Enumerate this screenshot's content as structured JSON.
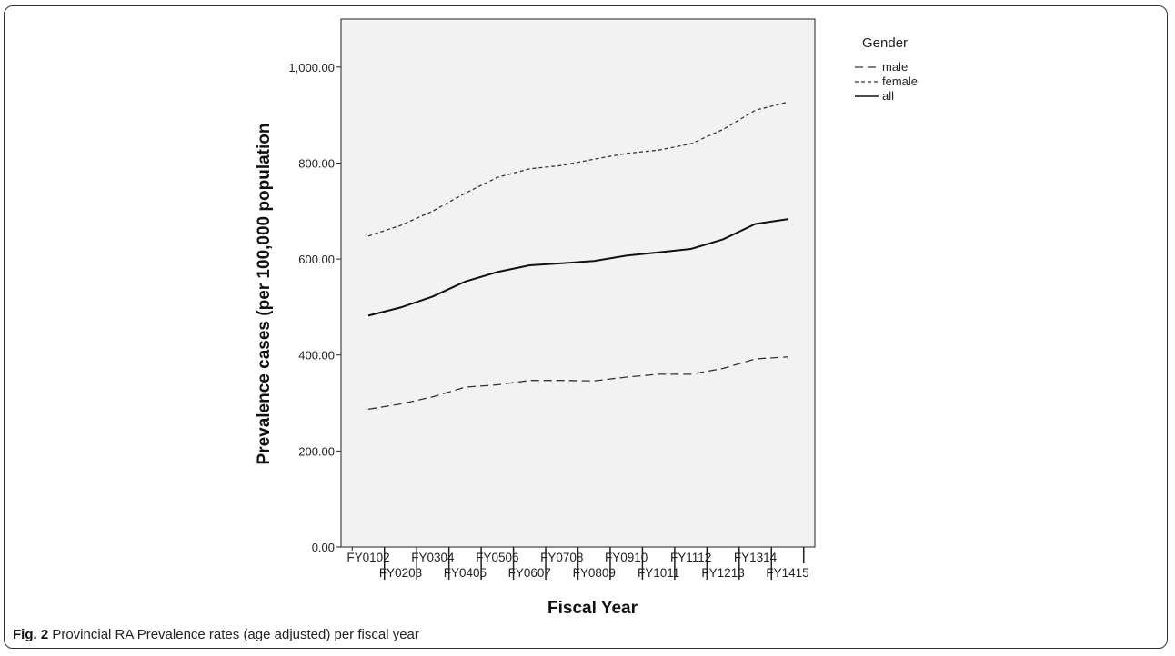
{
  "figure": {
    "caption_label": "Fig. 2",
    "caption_text": "Provincial RA Prevalence rates (age adjusted) per fiscal year"
  },
  "chart_data": {
    "type": "line",
    "title": "",
    "xlabel": "Fiscal Year",
    "ylabel": "Prevalence cases (per 100,000 population",
    "ylim": [
      0,
      1100
    ],
    "y_ticks": [
      0,
      200,
      400,
      600,
      800,
      1000
    ],
    "y_tick_labels": [
      "0.00",
      "200.00",
      "400.00",
      "600.00",
      "800.00",
      "1,000.00"
    ],
    "categories": [
      "FY0102",
      "FY0203",
      "FY0304",
      "FY0405",
      "FY0506",
      "FY0607",
      "FY0708",
      "FY0809",
      "FY0910",
      "FY1011",
      "FY1112",
      "FY1213",
      "FY1314",
      "FY1415"
    ],
    "legend_title": "Gender",
    "legend_position": "top-right, outside plot",
    "grid": false,
    "plot_background": "#f2f2f2",
    "series": [
      {
        "name": "male",
        "dash": "long-dash",
        "color": "#333333",
        "values": [
          287,
          298,
          313,
          333,
          338,
          347,
          347,
          346,
          354,
          360,
          360,
          372,
          392,
          396
        ]
      },
      {
        "name": "female",
        "dash": "short-dash",
        "color": "#333333",
        "values": [
          648,
          670,
          700,
          737,
          770,
          788,
          795,
          808,
          820,
          827,
          840,
          870,
          910,
          927
        ]
      },
      {
        "name": "all",
        "dash": "solid",
        "color": "#111111",
        "values": [
          482,
          499,
          522,
          553,
          573,
          587,
          591,
          596,
          607,
          614,
          621,
          641,
          673,
          683
        ]
      }
    ]
  }
}
